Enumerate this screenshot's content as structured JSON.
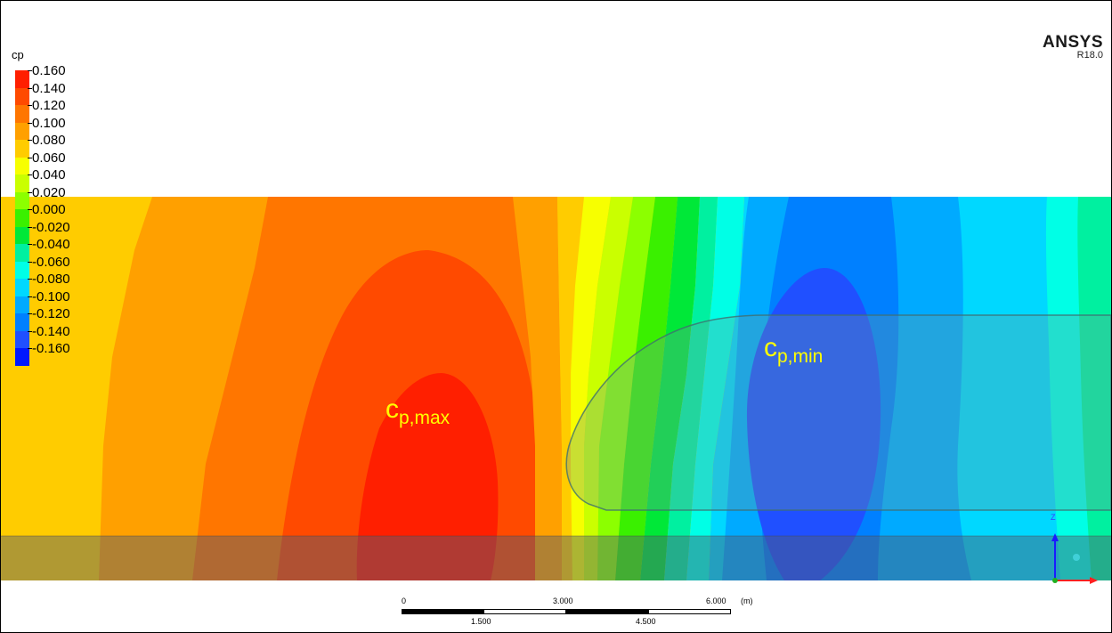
{
  "legend": {
    "variable": "cp",
    "labels": [
      "0.160",
      "0.140",
      "0.120",
      "0.100",
      "0.080",
      "0.060",
      "0.040",
      "0.020",
      "0.000",
      "-0.020",
      "-0.040",
      "-0.060",
      "-0.080",
      "-0.100",
      "-0.120",
      "-0.140",
      "-0.160"
    ],
    "colors": [
      "#ff1f00",
      "#ff4a00",
      "#ff7600",
      "#ffa000",
      "#ffcc00",
      "#f7ff00",
      "#caff00",
      "#8cff00",
      "#3af000",
      "#00e838",
      "#00f0a0",
      "#00ffe6",
      "#00d8ff",
      "#00aaff",
      "#0080ff",
      "#2050ff",
      "#0018ff"
    ]
  },
  "branding": {
    "name": "ANSYS",
    "version": "R18.0"
  },
  "annotations": {
    "cp_max": {
      "base": "c",
      "sub": "p,max"
    },
    "cp_min": {
      "base": "c",
      "sub": "p,min"
    }
  },
  "scale_bar": {
    "unit": "(m)",
    "top_labels": [
      "0",
      "3.000",
      "6.000"
    ],
    "bottom_labels": [
      "1.500",
      "4.500"
    ]
  },
  "axis_triad": {
    "up": "Z"
  }
}
